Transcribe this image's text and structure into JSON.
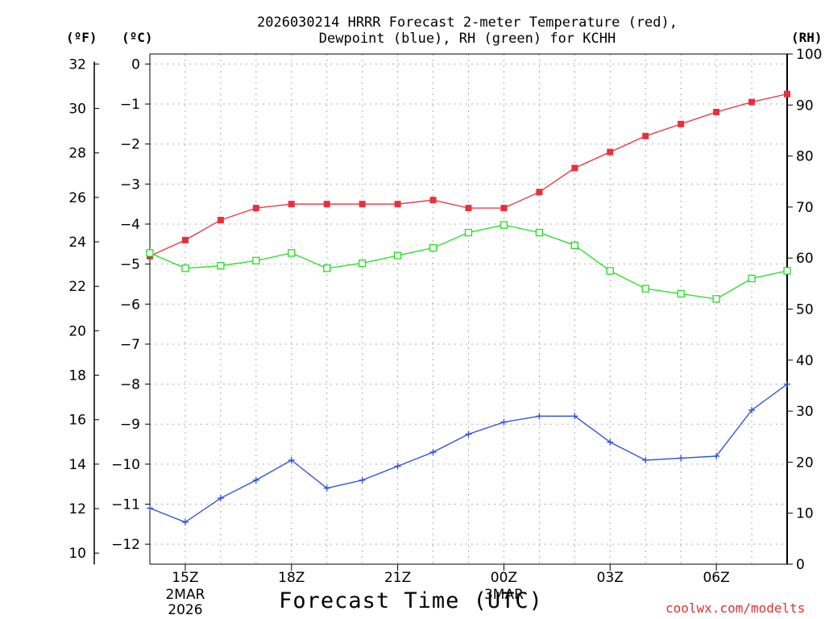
{
  "title_line1": "2026030214 HRRR Forecast 2-meter Temperature (red),",
  "title_line2": "Dewpoint (blue), RH (green) for KCHH",
  "units": {
    "fahrenheit": "(ºF)",
    "celsius": "(ºC)",
    "rh": "(RH)"
  },
  "xlabel": "Forecast Time (UTC)",
  "credit": "coolwx.com/modelts",
  "colors": {
    "temperature": "#e8303a",
    "dewpoint": "#2a4be0",
    "rh": "#1ee01e",
    "grid": "#aaaaaa"
  },
  "chart_data": {
    "type": "line",
    "x_hours_utc": [
      14,
      15,
      16,
      17,
      18,
      19,
      20,
      21,
      22,
      23,
      24,
      25,
      26,
      27,
      28,
      29,
      30,
      31,
      32
    ],
    "x_ticks": [
      {
        "hour": 15,
        "label": "15Z",
        "sub1": "2MAR",
        "sub2": "2026"
      },
      {
        "hour": 18,
        "label": "18Z",
        "sub1": "",
        "sub2": ""
      },
      {
        "hour": 21,
        "label": "21Z",
        "sub1": "",
        "sub2": ""
      },
      {
        "hour": 24,
        "label": "00Z",
        "sub1": "3MAR",
        "sub2": ""
      },
      {
        "hour": 27,
        "label": "03Z",
        "sub1": "",
        "sub2": ""
      },
      {
        "hour": 30,
        "label": "06Z",
        "sub1": "",
        "sub2": ""
      }
    ],
    "xlim": [
      14,
      32
    ],
    "y_left_celsius": {
      "lim": [
        -12.5,
        0.25
      ],
      "ticks": [
        0,
        -1,
        -2,
        -3,
        -4,
        -5,
        -6,
        -7,
        -8,
        -9,
        -10,
        -11,
        -12
      ],
      "tick_labels": [
        "0",
        "−1",
        "−2",
        "−3",
        "−4",
        "−5",
        "−6",
        "−7",
        "−8",
        "−9",
        "−10",
        "−11",
        "−12"
      ]
    },
    "y_left_fahrenheit": {
      "ticks": [
        32,
        30,
        28,
        26,
        24,
        22,
        20,
        18,
        16,
        14,
        12,
        10
      ],
      "tick_labels": [
        "32",
        "30",
        "28",
        "26",
        "24",
        "22",
        "20",
        "18",
        "16",
        "14",
        "12",
        "10"
      ]
    },
    "y_right_rh": {
      "lim": [
        0,
        100
      ],
      "ticks": [
        0,
        10,
        20,
        30,
        40,
        50,
        60,
        70,
        80,
        90,
        100
      ],
      "tick_labels": [
        "0",
        "10",
        "20",
        "30",
        "40",
        "50",
        "60",
        "70",
        "80",
        "90",
        "100"
      ]
    },
    "series": [
      {
        "name": "Temperature",
        "axis": "celsius",
        "marker": "filled-square",
        "values": [
          -4.8,
          -4.4,
          -3.9,
          -3.6,
          -3.5,
          -3.5,
          -3.5,
          -3.5,
          -3.4,
          -3.6,
          -3.6,
          -3.2,
          -2.6,
          -2.2,
          -1.8,
          -1.5,
          -1.2,
          -0.95,
          -0.75
        ]
      },
      {
        "name": "Dewpoint",
        "axis": "celsius",
        "marker": "plus",
        "values": [
          -11.1,
          -11.45,
          -10.85,
          -10.4,
          -9.9,
          -10.6,
          -10.4,
          -10.05,
          -9.7,
          -9.25,
          -8.95,
          -8.8,
          -8.8,
          -9.45,
          -9.9,
          -9.85,
          -9.8,
          -8.65,
          -8.0
        ]
      },
      {
        "name": "RH",
        "axis": "rh",
        "marker": "open-square",
        "values": [
          61,
          58,
          58.5,
          59.5,
          61,
          58,
          59,
          60.5,
          62,
          65,
          66.5,
          65,
          62.5,
          57.5,
          54,
          53,
          52,
          56,
          57.5
        ]
      }
    ]
  }
}
